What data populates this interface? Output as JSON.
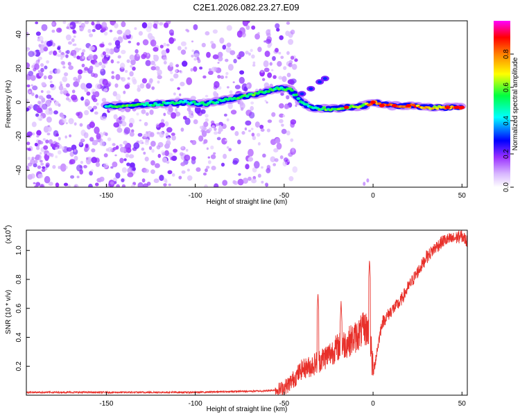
{
  "title": "C2E1.2026.082.23.27.E09",
  "colors": {
    "spectrogram_low": "#dcc8f5",
    "spectrogram_mid": "#6a1be0",
    "line": "#e8302a",
    "axis": "#000000"
  },
  "chart_data": [
    {
      "type": "heatmap",
      "name": "spectrogram",
      "xlabel": "Height of straight line (km)",
      "ylabel": "Frequency (Hz)",
      "xlim": [
        -195,
        53
      ],
      "ylim": [
        -50,
        48
      ],
      "xticks": [
        -150,
        -100,
        -50,
        0,
        50
      ],
      "yticks": [
        -40,
        -20,
        0,
        20,
        40
      ],
      "colorbar": {
        "label": "Normalized spectral amplitude",
        "range": [
          0,
          1
        ],
        "ticks": [
          "0.0",
          "0.2",
          "0.4",
          "0.6",
          "0.8"
        ],
        "colormap": [
          "#ffffff",
          "#b040ff",
          "#0000ff",
          "#00ffff",
          "#00ff00",
          "#ffff00",
          "#ff8000",
          "#ff0000",
          "#ff00ff"
        ]
      },
      "noise_region_km": [
        -195,
        -55
      ],
      "ridge": [
        {
          "km": -150,
          "hz": -2,
          "amp": 0.45
        },
        {
          "km": -140,
          "hz": -2,
          "amp": 0.55
        },
        {
          "km": -120,
          "hz": -1,
          "amp": 0.5
        },
        {
          "km": -105,
          "hz": 0,
          "amp": 0.45
        },
        {
          "km": -95,
          "hz": -1,
          "amp": 0.5
        },
        {
          "km": -80,
          "hz": 2,
          "amp": 0.5
        },
        {
          "km": -65,
          "hz": 5,
          "amp": 0.55
        },
        {
          "km": -55,
          "hz": 8,
          "amp": 0.5
        },
        {
          "km": -47,
          "hz": 8,
          "amp": 0.55
        },
        {
          "km": -40,
          "hz": 0,
          "amp": 0.45
        },
        {
          "km": -35,
          "hz": -3,
          "amp": 0.5
        },
        {
          "km": -25,
          "hz": -4,
          "amp": 0.55
        },
        {
          "km": -15,
          "hz": -3,
          "amp": 0.6
        },
        {
          "km": -5,
          "hz": -2,
          "amp": 0.6
        },
        {
          "km": 0,
          "hz": 0,
          "amp": 0.85
        },
        {
          "km": 10,
          "hz": -2,
          "amp": 0.8
        },
        {
          "km": 20,
          "hz": -2,
          "amp": 0.85
        },
        {
          "km": 30,
          "hz": -3,
          "amp": 0.7
        },
        {
          "km": 40,
          "hz": -3,
          "amp": 0.75
        },
        {
          "km": 50,
          "hz": -3,
          "amp": 0.9
        }
      ],
      "branch": [
        {
          "km": -40,
          "hz": 5
        },
        {
          "km": -35,
          "hz": 8
        },
        {
          "km": -30,
          "hz": 12
        },
        {
          "km": -27,
          "hz": 14
        }
      ]
    },
    {
      "type": "line",
      "name": "snr",
      "xlabel": "Height of straight line (km)",
      "ylabel": "SNR (10 * v/v)",
      "y_multiplier": "(x10",
      "y_multiplier_exp": "4",
      "y_multiplier_close": ")",
      "xlim": [
        -195,
        53
      ],
      "ylim": [
        0,
        1.14
      ],
      "xticks": [
        -150,
        -100,
        -50,
        0,
        50
      ],
      "yticks": [
        0.2,
        0.4,
        0.6,
        0.8,
        1.0
      ],
      "ytick_labels": [
        "0.2",
        "0.4",
        "0.6",
        "0.8",
        "1.0"
      ],
      "x": [
        -195,
        -150,
        -100,
        -60,
        -52,
        -48,
        -44,
        -40,
        -35,
        -30,
        -25,
        -20,
        -15,
        -10,
        -5,
        -2,
        0,
        5,
        10,
        15,
        20,
        25,
        30,
        35,
        40,
        45,
        50,
        53
      ],
      "y": [
        0.02,
        0.02,
        0.02,
        0.03,
        0.04,
        0.07,
        0.12,
        0.18,
        0.2,
        0.24,
        0.28,
        0.33,
        0.36,
        0.4,
        0.46,
        0.45,
        0.15,
        0.5,
        0.58,
        0.64,
        0.75,
        0.85,
        0.95,
        1.02,
        1.07,
        1.08,
        1.1,
        1.06
      ],
      "spikes": [
        {
          "x": -31,
          "y": 0.71
        },
        {
          "x": -18,
          "y": 0.65
        },
        {
          "x": -2,
          "y": 0.94
        },
        {
          "x": 30,
          "y": 1.0
        },
        {
          "x": 48,
          "y": 1.13
        }
      ]
    }
  ]
}
